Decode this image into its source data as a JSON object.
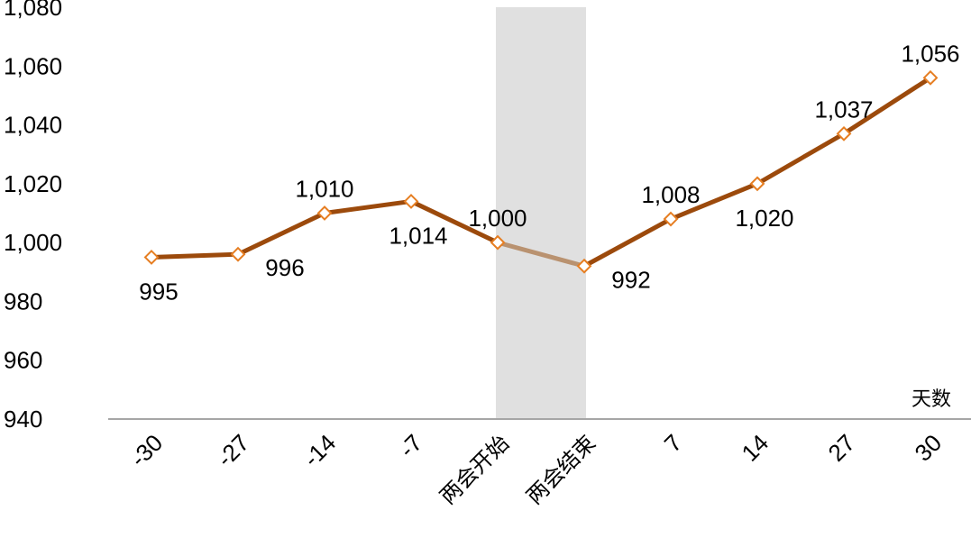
{
  "chart_data": {
    "type": "line",
    "categories": [
      "-30",
      "-27",
      "-14",
      "-7",
      "两会开始",
      "两会结束",
      "7",
      "14",
      "27",
      "30"
    ],
    "values": [
      995,
      996,
      1010,
      1014,
      1000,
      992,
      1008,
      1020,
      1037,
      1056
    ],
    "data_labels": [
      "995",
      "996",
      "1,010",
      "1,014",
      "1,000",
      "992",
      "1,008",
      "1,020",
      "1,037",
      "1,056"
    ],
    "label_positions": [
      "below",
      "below-right",
      "above",
      "below",
      "above",
      "below-right",
      "above",
      "below",
      "above",
      "above"
    ],
    "y_ticks": [
      "940",
      "960",
      "980",
      "1,000",
      "1,020",
      "1,040",
      "1,060",
      "1,080"
    ],
    "ylim": [
      940,
      1080
    ],
    "x_unit_label": "天数",
    "highlight_band": {
      "from_category": "两会开始",
      "to_category": "两会结束",
      "color": "#e0e0e0"
    },
    "colors": {
      "line": "#9c4a0c",
      "line_highlight": "#b99270",
      "marker_stroke": "#e67e22",
      "marker_fill": "#ffffff",
      "axis": "#a6a6a6"
    },
    "grid": false,
    "legend": "none"
  }
}
